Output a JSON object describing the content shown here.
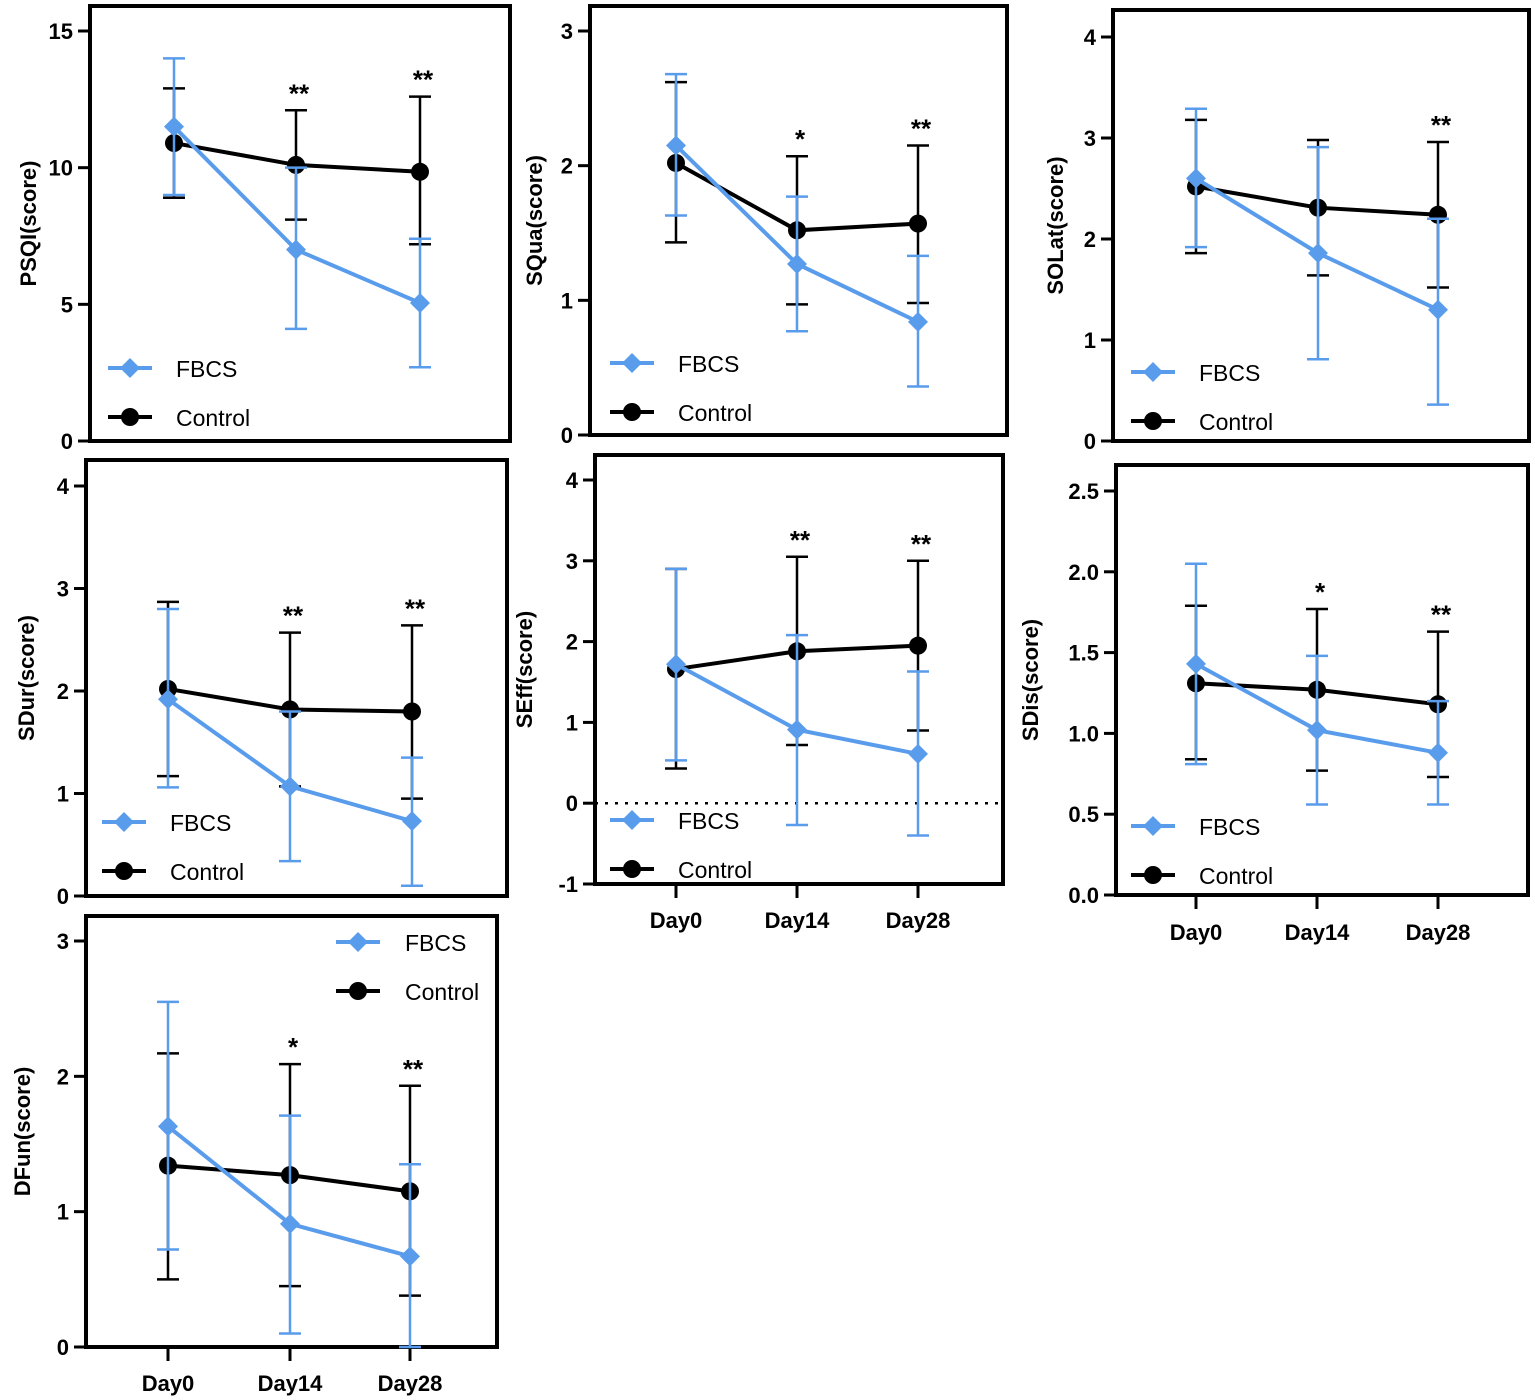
{
  "colors": {
    "fbcs": "#5a9cec",
    "control": "#000000"
  },
  "chart_data": [
    {
      "type": "line",
      "ylabel": "PSQI(score)",
      "categories": [
        "Day0",
        "Day14",
        "Day28"
      ],
      "ylim": [
        0,
        15
      ],
      "yticks": [
        "0",
        "5",
        "10",
        "15"
      ],
      "ytick_values": [
        0,
        5,
        10,
        15
      ],
      "show_xlabels": false,
      "zero_line": false,
      "legend": "bottom-left",
      "series": [
        {
          "name": "FBCS",
          "marker": "diamond",
          "values": [
            11.5,
            7.0,
            5.05
          ],
          "error": [
            [
              9.0,
              14.0
            ],
            [
              4.1,
              10.0
            ],
            [
              2.7,
              7.4
            ]
          ]
        },
        {
          "name": "Control",
          "marker": "circle",
          "values": [
            10.9,
            10.1,
            9.85
          ],
          "error": [
            [
              8.9,
              12.9
            ],
            [
              8.1,
              12.1
            ],
            [
              7.2,
              12.6
            ]
          ]
        }
      ],
      "annotations": [
        "",
        "**",
        "**"
      ]
    },
    {
      "type": "line",
      "ylabel": "SQua(score)",
      "categories": [
        "Day0",
        "Day14",
        "Day28"
      ],
      "ylim": [
        0,
        3
      ],
      "yticks": [
        "0",
        "1",
        "2",
        "3"
      ],
      "ytick_values": [
        0,
        1,
        2,
        3
      ],
      "show_xlabels": false,
      "zero_line": false,
      "legend": "bottom-left",
      "series": [
        {
          "name": "FBCS",
          "marker": "diamond",
          "values": [
            2.15,
            1.27,
            0.84
          ],
          "error": [
            [
              1.63,
              2.68
            ],
            [
              0.77,
              1.77
            ],
            [
              0.36,
              1.33
            ]
          ]
        },
        {
          "name": "Control",
          "marker": "circle",
          "values": [
            2.02,
            1.52,
            1.57
          ],
          "error": [
            [
              1.43,
              2.62
            ],
            [
              0.97,
              2.07
            ],
            [
              0.98,
              2.15
            ]
          ]
        }
      ],
      "annotations": [
        "",
        "*",
        "**"
      ]
    },
    {
      "type": "line",
      "ylabel": "SOLat(score)",
      "categories": [
        "Day0",
        "Day14",
        "Day28"
      ],
      "ylim": [
        0,
        4
      ],
      "yticks": [
        "0",
        "1",
        "2",
        "3",
        "4"
      ],
      "ytick_values": [
        0,
        1,
        2,
        3,
        4
      ],
      "show_xlabels": false,
      "zero_line": false,
      "legend": "bottom-left",
      "series": [
        {
          "name": "FBCS",
          "marker": "diamond",
          "values": [
            2.6,
            1.86,
            1.3
          ],
          "error": [
            [
              1.92,
              3.29
            ],
            [
              0.81,
              2.91
            ],
            [
              0.36,
              2.2
            ]
          ]
        },
        {
          "name": "Control",
          "marker": "circle",
          "values": [
            2.52,
            2.31,
            2.24
          ],
          "error": [
            [
              1.86,
              3.18
            ],
            [
              1.64,
              2.98
            ],
            [
              1.52,
              2.96
            ]
          ]
        }
      ],
      "annotations": [
        "",
        "",
        "**"
      ]
    },
    {
      "type": "line",
      "ylabel": "SDur(score)",
      "categories": [
        "Day0",
        "Day14",
        "Day28"
      ],
      "ylim": [
        0,
        4
      ],
      "yticks": [
        "0",
        "1",
        "2",
        "3",
        "4"
      ],
      "ytick_values": [
        0,
        1,
        2,
        3,
        4
      ],
      "show_xlabels": false,
      "zero_line": false,
      "legend": "bottom-left",
      "series": [
        {
          "name": "FBCS",
          "marker": "diamond",
          "values": [
            1.92,
            1.07,
            0.73
          ],
          "error": [
            [
              1.06,
              2.8
            ],
            [
              0.34,
              1.8
            ],
            [
              0.1,
              1.35
            ]
          ]
        },
        {
          "name": "Control",
          "marker": "circle",
          "values": [
            2.02,
            1.82,
            1.8
          ],
          "error": [
            [
              1.17,
              2.87
            ],
            [
              1.07,
              2.57
            ],
            [
              0.95,
              2.64
            ]
          ]
        }
      ],
      "annotations": [
        "",
        "**",
        "**"
      ]
    },
    {
      "type": "line",
      "ylabel": "SEff(score)",
      "categories": [
        "Day0",
        "Day14",
        "Day28"
      ],
      "ylim": [
        -1,
        4
      ],
      "yticks": [
        "-1",
        "0",
        "1",
        "2",
        "3",
        "4"
      ],
      "ytick_values": [
        -1,
        0,
        1,
        2,
        3,
        4
      ],
      "show_xlabels": true,
      "zero_line": true,
      "legend": "bottom-left",
      "series": [
        {
          "name": "FBCS",
          "marker": "diamond",
          "values": [
            1.72,
            0.91,
            0.61
          ],
          "error": [
            [
              0.53,
              2.9
            ],
            [
              -0.27,
              2.08
            ],
            [
              -0.4,
              1.63
            ]
          ]
        },
        {
          "name": "Control",
          "marker": "circle",
          "values": [
            1.66,
            1.88,
            1.95
          ],
          "error": [
            [
              0.43,
              2.9
            ],
            [
              0.72,
              3.05
            ],
            [
              0.9,
              3.0
            ]
          ]
        }
      ],
      "annotations": [
        "",
        "**",
        "**"
      ]
    },
    {
      "type": "line",
      "ylabel": "SDis(score)",
      "categories": [
        "Day0",
        "Day14",
        "Day28"
      ],
      "ylim": [
        0,
        2.5
      ],
      "yticks": [
        "0.0",
        "0.5",
        "1.0",
        "1.5",
        "2.0",
        "2.5"
      ],
      "ytick_values": [
        0,
        0.5,
        1,
        1.5,
        2,
        2.5
      ],
      "show_xlabels": true,
      "zero_line": false,
      "legend": "bottom-left",
      "series": [
        {
          "name": "FBCS",
          "marker": "diamond",
          "values": [
            1.43,
            1.02,
            0.88
          ],
          "error": [
            [
              0.81,
              2.05
            ],
            [
              0.56,
              1.48
            ],
            [
              0.56,
              1.2
            ]
          ]
        },
        {
          "name": "Control",
          "marker": "circle",
          "values": [
            1.31,
            1.27,
            1.18
          ],
          "error": [
            [
              0.84,
              1.79
            ],
            [
              0.77,
              1.77
            ],
            [
              0.73,
              1.63
            ]
          ]
        }
      ],
      "annotations": [
        "",
        "*",
        "**"
      ]
    },
    {
      "type": "line",
      "ylabel": "DFun(score)",
      "categories": [
        "Day0",
        "Day14",
        "Day28"
      ],
      "ylim": [
        0,
        3
      ],
      "yticks": [
        "0",
        "1",
        "2",
        "3"
      ],
      "ytick_values": [
        0,
        1,
        2,
        3
      ],
      "show_xlabels": true,
      "zero_line": false,
      "legend": "top-right",
      "series": [
        {
          "name": "FBCS",
          "marker": "diamond",
          "values": [
            1.63,
            0.91,
            0.67
          ],
          "error": [
            [
              0.72,
              2.55
            ],
            [
              0.1,
              1.71
            ],
            [
              0,
              1.35
            ]
          ]
        },
        {
          "name": "Control",
          "marker": "circle",
          "values": [
            1.34,
            1.27,
            1.15
          ],
          "error": [
            [
              0.5,
              2.17
            ],
            [
              0.45,
              2.09
            ],
            [
              0.38,
              1.93
            ]
          ]
        }
      ],
      "annotations": [
        "",
        "*",
        "**"
      ]
    }
  ]
}
